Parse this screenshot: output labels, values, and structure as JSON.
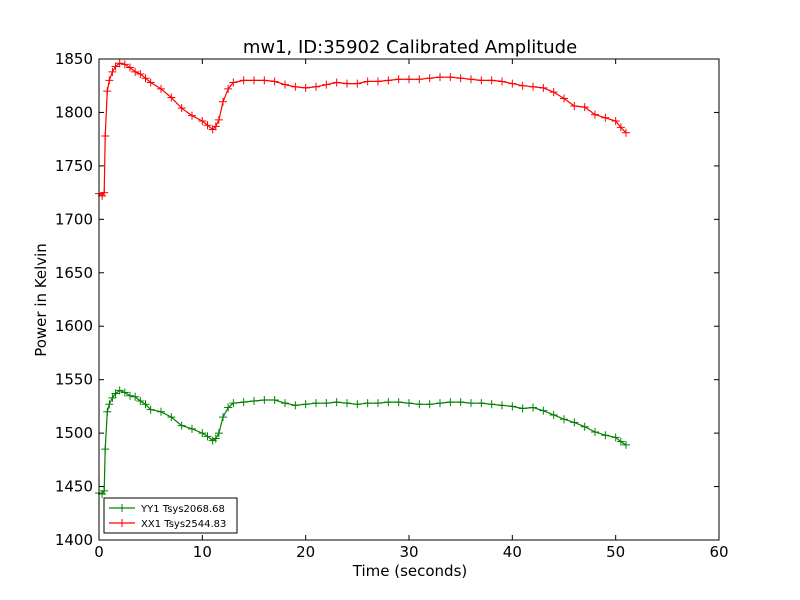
{
  "chart_data": {
    "type": "line",
    "title": "mw1, ID:35902 Calibrated Amplitude",
    "xlabel": "Time (seconds)",
    "ylabel": "Power in Kelvin",
    "xlim": [
      0,
      60
    ],
    "ylim": [
      1400,
      1850
    ],
    "xticks": [
      0,
      10,
      20,
      30,
      40,
      50,
      60
    ],
    "yticks": [
      1400,
      1450,
      1500,
      1550,
      1600,
      1650,
      1700,
      1750,
      1800,
      1850
    ],
    "grid": false,
    "legend_position": "lower-left",
    "marker": "+",
    "series": [
      {
        "name": "YY1 Tsys2068.68",
        "color": "#008000",
        "x": [
          0.0,
          0.3,
          0.5,
          0.6,
          0.8,
          1.0,
          1.3,
          1.6,
          2.0,
          2.5,
          3.0,
          3.5,
          4.0,
          4.5,
          5.0,
          6.0,
          7.0,
          8.0,
          9.0,
          10.0,
          10.5,
          11.0,
          11.3,
          11.6,
          12.0,
          12.5,
          13.0,
          14.0,
          15.0,
          16.0,
          17.0,
          18.0,
          19.0,
          20.0,
          21.0,
          22.0,
          23.0,
          24.0,
          25.0,
          26.0,
          27.0,
          28.0,
          29.0,
          30.0,
          31.0,
          32.0,
          33.0,
          34.0,
          35.0,
          36.0,
          37.0,
          38.0,
          39.0,
          40.0,
          41.0,
          42.0,
          43.0,
          44.0,
          45.0,
          46.0,
          47.0,
          48.0,
          49.0,
          50.0,
          50.5,
          51.0
        ],
        "y": [
          1444,
          1443,
          1446,
          1485,
          1520,
          1527,
          1533,
          1537,
          1540,
          1538,
          1535,
          1534,
          1530,
          1527,
          1522,
          1520,
          1515,
          1507,
          1504,
          1500,
          1497,
          1493,
          1495,
          1500,
          1515,
          1524,
          1528,
          1529,
          1530,
          1531,
          1531,
          1528,
          1526,
          1527,
          1528,
          1528,
          1529,
          1528,
          1527,
          1528,
          1528,
          1529,
          1529,
          1528,
          1527,
          1527,
          1528,
          1529,
          1529,
          1528,
          1528,
          1527,
          1526,
          1525,
          1523,
          1524,
          1521,
          1517,
          1513,
          1510,
          1506,
          1501,
          1498,
          1496,
          1492,
          1489
        ]
      },
      {
        "name": "XX1 Tsys2544.83",
        "color": "#ff0000",
        "x": [
          0.0,
          0.3,
          0.5,
          0.6,
          0.8,
          1.0,
          1.3,
          1.6,
          2.0,
          2.5,
          3.0,
          3.5,
          4.0,
          4.5,
          5.0,
          6.0,
          7.0,
          8.0,
          9.0,
          10.0,
          10.5,
          11.0,
          11.3,
          11.6,
          12.0,
          12.5,
          13.0,
          14.0,
          15.0,
          16.0,
          17.0,
          18.0,
          19.0,
          20.0,
          21.0,
          22.0,
          23.0,
          24.0,
          25.0,
          26.0,
          27.0,
          28.0,
          29.0,
          30.0,
          31.0,
          32.0,
          33.0,
          34.0,
          35.0,
          36.0,
          37.0,
          38.0,
          39.0,
          40.0,
          41.0,
          42.0,
          43.0,
          44.0,
          45.0,
          46.0,
          47.0,
          48.0,
          49.0,
          50.0,
          50.5,
          51.0
        ],
        "y": [
          1724,
          1722,
          1725,
          1778,
          1820,
          1830,
          1838,
          1843,
          1846,
          1845,
          1842,
          1838,
          1836,
          1832,
          1828,
          1822,
          1814,
          1804,
          1797,
          1792,
          1788,
          1784,
          1787,
          1793,
          1810,
          1822,
          1828,
          1830,
          1830,
          1830,
          1829,
          1826,
          1824,
          1823,
          1824,
          1826,
          1828,
          1827,
          1827,
          1829,
          1829,
          1830,
          1831,
          1831,
          1831,
          1832,
          1833,
          1833,
          1832,
          1831,
          1830,
          1830,
          1829,
          1827,
          1825,
          1824,
          1823,
          1819,
          1813,
          1806,
          1805,
          1798,
          1795,
          1792,
          1786,
          1781
        ]
      }
    ]
  }
}
